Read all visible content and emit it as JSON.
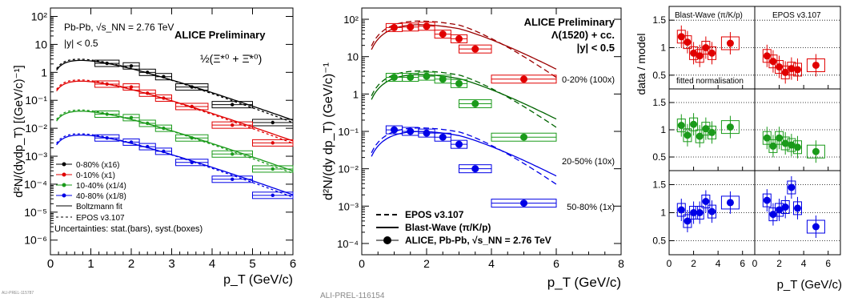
{
  "colors": {
    "black": "#000000",
    "red": "#e00000",
    "green": "#1a9a1a",
    "blue": "#0000e6",
    "dark_red": "#9b0000",
    "dark_green": "#006400"
  },
  "chart_data": [
    {
      "type": "scatter",
      "log_y": true,
      "xlim": [
        0,
        6
      ],
      "ylim": [
        3e-07,
        200
      ],
      "xlabel": "p_T (GeV/c)",
      "ylabel": "d²N/(dydp_T) [(GeV/c)⁻¹]",
      "x_ticks": [
        "0",
        "1",
        "2",
        "3",
        "4",
        "5",
        "6"
      ],
      "y_ticks": [
        "10⁻⁶",
        "10⁻⁵",
        "10⁻⁴",
        "10⁻³",
        "10⁻²",
        "10⁻¹",
        "1",
        "10",
        "10²"
      ],
      "system_label": "Pb-Pb, √s_NN = 2.76 TeV",
      "rapidity_label": "|y| < 0.5",
      "preliminary_label": "ALICE Preliminary",
      "particle_label": "½(Ξ*⁰ + Ξ̄*⁰)",
      "uncertainty_note": "Uncertainties: stat.(bars), syst.(boxes)",
      "legend": [
        "0-80% (x16)",
        "0-10% (x1)",
        "10-40% (x1/4)",
        "40-80% (x1/8)",
        "Boltzmann fit",
        "EPOS v3.107"
      ],
      "series": [
        {
          "name": "0-80% (x16)",
          "color": "black",
          "x": [
            1.4,
            2.0,
            2.4,
            2.8,
            3.5,
            4.5,
            5.5
          ],
          "y": [
            2.1,
            1.7,
            1.0,
            0.7,
            0.3,
            0.07,
            0.016
          ]
        },
        {
          "name": "0-10% (x1)",
          "color": "red",
          "x": [
            1.4,
            2.0,
            2.4,
            2.8,
            3.5,
            4.5,
            5.5
          ],
          "y": [
            0.38,
            0.3,
            0.18,
            0.12,
            0.06,
            0.013,
            0.003
          ]
        },
        {
          "name": "10-40% (x1/4)",
          "color": "green",
          "x": [
            1.4,
            2.0,
            2.4,
            2.8,
            3.5,
            4.5,
            5.5
          ],
          "y": [
            0.032,
            0.024,
            0.015,
            0.01,
            0.0045,
            0.0012,
            0.00035
          ]
        },
        {
          "name": "40-80% (x1/8)",
          "color": "blue",
          "x": [
            1.4,
            2.0,
            2.4,
            2.8,
            3.5,
            4.5,
            5.5
          ],
          "y": [
            0.0045,
            0.0032,
            0.0022,
            0.0015,
            0.0006,
            0.00015,
            4e-05
          ]
        }
      ]
    },
    {
      "type": "scatter",
      "log_y": true,
      "xlim": [
        0,
        8
      ],
      "ylim": [
        5e-05,
        200
      ],
      "xlabel": "p_T (GeV/c)",
      "ylabel": "d²N/(dy dp_T) (GeV/c)⁻¹",
      "x_ticks": [
        "0",
        "2",
        "4",
        "6",
        "8"
      ],
      "y_ticks": [
        "10⁻⁴",
        "10⁻³",
        "10⁻²",
        "10⁻¹",
        "1",
        "10",
        "10²"
      ],
      "preliminary_label": "ALICE Preliminary",
      "particle_label": "Λ(1520) + cc.",
      "rapidity_label": "|y| < 0.5",
      "legend": [
        "EPOS v3.107",
        "Blast-Wave (π/K/p)",
        "ALICE, Pb-Pb, √s_NN = 2.76 TeV"
      ],
      "series": [
        {
          "name": "0-20% (100x)",
          "color": "red",
          "x": [
            1.0,
            1.5,
            2.0,
            2.5,
            3.0,
            3.5,
            5.0
          ],
          "y": [
            60,
            62,
            65,
            40,
            30,
            16,
            2.5
          ]
        },
        {
          "name": "20-50% (10x)",
          "color": "green",
          "x": [
            1.0,
            1.5,
            2.0,
            2.5,
            3.0,
            3.5,
            5.0
          ],
          "y": [
            2.8,
            2.8,
            3.0,
            2.5,
            1.9,
            0.55,
            0.07
          ]
        },
        {
          "name": "50-80% (1x)",
          "color": "blue",
          "x": [
            1.0,
            1.5,
            2.0,
            2.5,
            3.0,
            3.5,
            5.0
          ],
          "y": [
            0.11,
            0.1,
            0.09,
            0.07,
            0.045,
            0.01,
            0.0012
          ]
        }
      ]
    },
    {
      "type": "scatter",
      "xlim": [
        0,
        7
      ],
      "ylim": [
        0.25,
        1.75
      ],
      "xlabel": "p_T (GeV/c)",
      "ylabel": "data / model",
      "x_ticks": [
        "0",
        "2",
        "4",
        "6"
      ],
      "y_ticks": [
        "0.5",
        "1",
        "1.5"
      ],
      "column_titles": [
        "Blast-Wave (π/K/p)",
        "EPOS v3.107"
      ],
      "note": "fitted normalisation",
      "series": [
        {
          "name": "0-20% / Blast-Wave",
          "color": "red",
          "x": [
            1.0,
            1.5,
            2.0,
            2.5,
            3.0,
            3.5,
            5.0
          ],
          "y": [
            1.2,
            1.1,
            0.9,
            0.85,
            1.0,
            0.9,
            1.08
          ]
        },
        {
          "name": "0-20% / EPOS",
          "color": "red",
          "x": [
            1.0,
            1.5,
            2.0,
            2.5,
            3.0,
            3.5,
            5.0
          ],
          "y": [
            0.85,
            0.75,
            0.65,
            0.55,
            0.62,
            0.6,
            0.68
          ]
        },
        {
          "name": "20-50% / Blast-Wave",
          "color": "green",
          "x": [
            1.0,
            1.5,
            2.0,
            2.5,
            3.0,
            3.5,
            5.0
          ],
          "y": [
            1.08,
            0.9,
            1.1,
            0.88,
            1.02,
            0.95,
            1.05
          ]
        },
        {
          "name": "20-50% / EPOS",
          "color": "green",
          "x": [
            1.0,
            1.5,
            2.0,
            2.5,
            3.0,
            3.5,
            5.0
          ],
          "y": [
            0.85,
            0.7,
            0.85,
            0.75,
            0.72,
            0.68,
            0.6
          ]
        },
        {
          "name": "50-80% / Blast-Wave",
          "color": "blue",
          "x": [
            1.0,
            1.5,
            2.0,
            2.5,
            3.0,
            3.5,
            5.0
          ],
          "y": [
            1.05,
            0.85,
            1.0,
            1.0,
            1.2,
            1.02,
            1.18
          ]
        },
        {
          "name": "50-80% / EPOS",
          "color": "blue",
          "x": [
            1.0,
            1.5,
            2.0,
            2.5,
            3.0,
            3.5,
            5.0
          ],
          "y": [
            1.22,
            0.97,
            1.05,
            1.1,
            1.45,
            1.08,
            0.75
          ]
        }
      ]
    }
  ],
  "watermarks": [
    "ALI-PREL-115787",
    "ALI-PREL-116154"
  ]
}
